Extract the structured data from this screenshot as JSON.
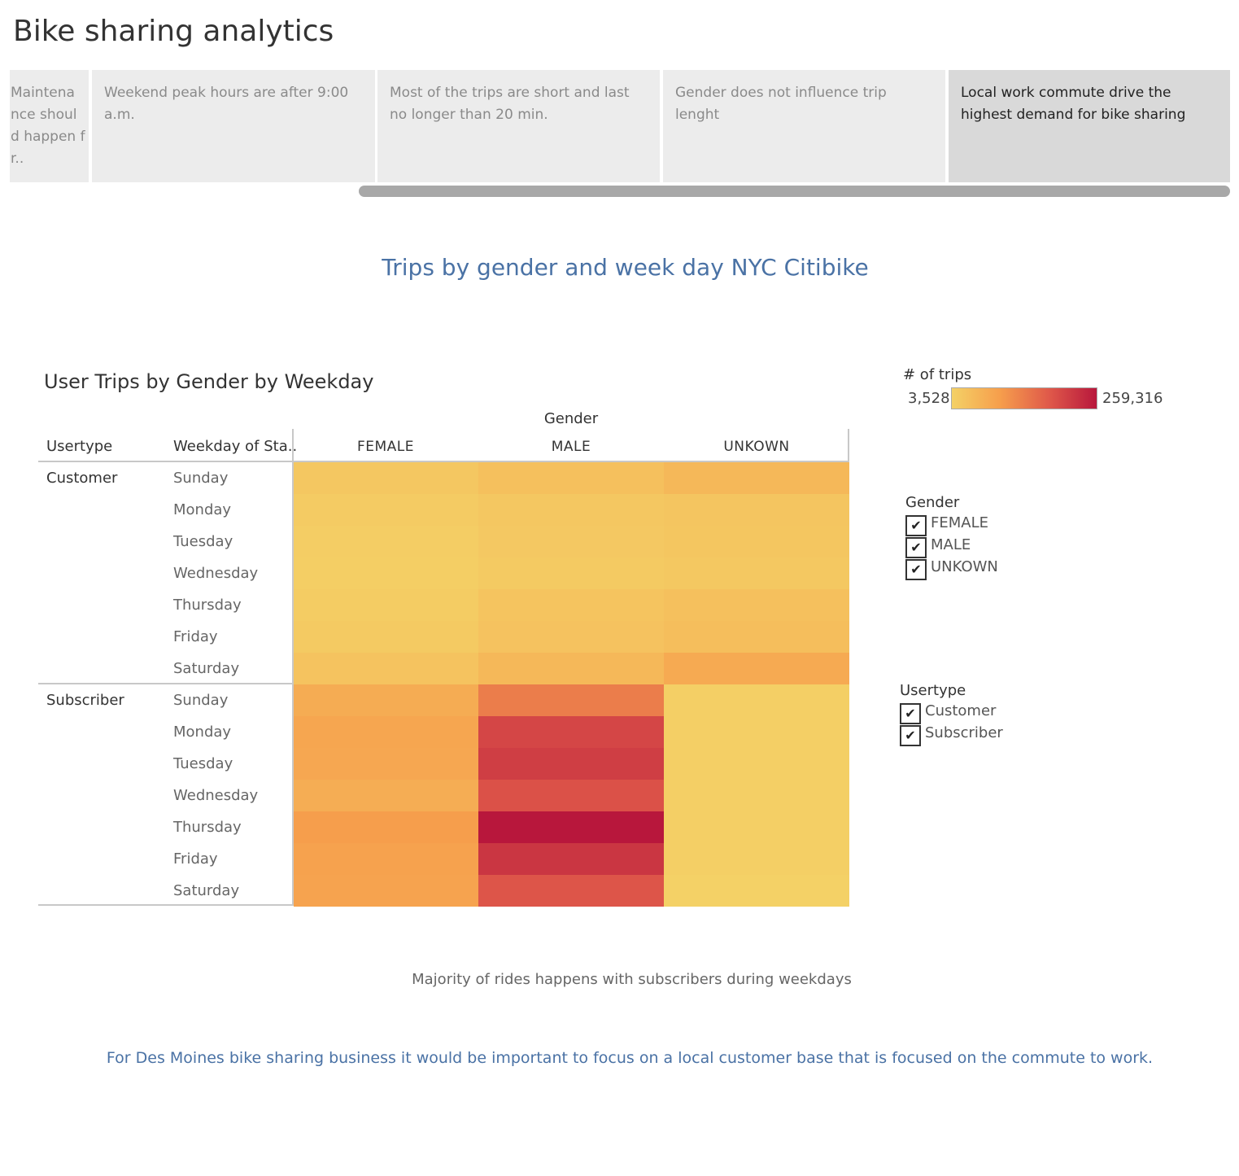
{
  "page_title": "Bike sharing analytics",
  "story_points": [
    {
      "label": "Maintenance should happen fr..",
      "display": "Maintena nce shoul d happen fr..",
      "active": false
    },
    {
      "label": "Weekend peak hours are after 9:00 a.m.",
      "active": false
    },
    {
      "label": "Most of the trips are short and last no longer than 20 min.",
      "active": false
    },
    {
      "label": "Gender does not influence trip lenght",
      "active": false
    },
    {
      "label": "Local work commute drive the highest demand for bike sharing",
      "active": true
    }
  ],
  "dashboard_title": "Trips by gender and week day NYC Citibike",
  "sheet_title": "User Trips by Gender by Weekday",
  "headers": {
    "column_group": "Gender",
    "usertype": "Usertype",
    "weekday": "Weekday of Sta.."
  },
  "chart_data": {
    "type": "heatmap",
    "title": "User Trips by Gender by Weekday",
    "columns": [
      "FEMALE",
      "MALE",
      "UNKOWN"
    ],
    "column_axis_label": "Gender",
    "row_groups": [
      {
        "name": "Customer",
        "rows": [
          "Sunday",
          "Monday",
          "Tuesday",
          "Wednesday",
          "Thursday",
          "Friday",
          "Saturday"
        ],
        "values": [
          [
            20000,
            32000,
            45000
          ],
          [
            13000,
            20000,
            24000
          ],
          [
            11000,
            18000,
            22000
          ],
          [
            9000,
            16000,
            19000
          ],
          [
            12000,
            25000,
            32000
          ],
          [
            16000,
            28000,
            36000
          ],
          [
            27000,
            45000,
            68000
          ]
        ]
      },
      {
        "name": "Subscriber",
        "rows": [
          "Sunday",
          "Monday",
          "Tuesday",
          "Wednesday",
          "Thursday",
          "Friday",
          "Saturday"
        ],
        "values": [
          [
            65000,
            130000,
            7000
          ],
          [
            75000,
            200000,
            7500
          ],
          [
            73000,
            210000,
            7500
          ],
          [
            63000,
            185000,
            7500
          ],
          [
            88000,
            259316,
            7000
          ],
          [
            82000,
            220000,
            7000
          ],
          [
            80000,
            180000,
            3528
          ]
        ]
      }
    ],
    "color_scale": {
      "title": "# of trips",
      "min": 3528,
      "max": 259316,
      "min_label": "3,528",
      "max_label": "259,316",
      "colors": [
        "#f4d166",
        "#f69e4c",
        "#e05a4a",
        "#b8173c"
      ]
    }
  },
  "filters": {
    "gender": {
      "title": "Gender",
      "items": [
        {
          "label": "FEMALE",
          "checked": true
        },
        {
          "label": "MALE",
          "checked": true
        },
        {
          "label": "UNKOWN",
          "checked": true
        }
      ]
    },
    "usertype": {
      "title": "Usertype",
      "items": [
        {
          "label": "Customer",
          "checked": true
        },
        {
          "label": "Subscriber",
          "checked": true
        }
      ]
    }
  },
  "check_glyph": "✔",
  "caption": "Majority of rides happens with subscribers during weekdays",
  "footer_text": "For Des Moines bike sharing business it would be important to focus on  a local customer base that is focused on the commute to work."
}
